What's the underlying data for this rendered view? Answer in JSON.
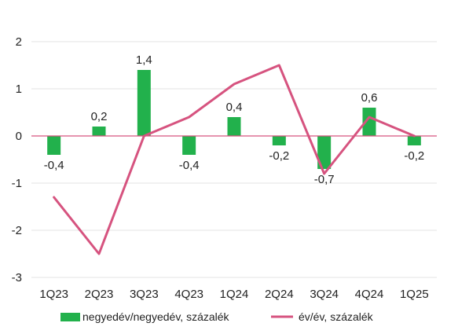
{
  "chart_data": {
    "type": "bar",
    "categories": [
      "1Q23",
      "2Q23",
      "3Q23",
      "4Q23",
      "1Q24",
      "2Q24",
      "3Q24",
      "4Q24",
      "1Q25"
    ],
    "series": [
      {
        "name": "negyedév/negyedév, százalék",
        "type": "bar",
        "values": [
          -0.4,
          0.2,
          1.4,
          -0.4,
          0.4,
          -0.2,
          -0.7,
          0.6,
          -0.2
        ],
        "labels": [
          "-0,4",
          "0,2",
          "1,4",
          "-0,4",
          "0,4",
          "-0,2",
          "-0,7",
          "0,6",
          "-0,2"
        ],
        "color": "#22b14c"
      },
      {
        "name": "év/év, százalék",
        "type": "line",
        "values": [
          -1.3,
          -2.5,
          0.0,
          0.4,
          1.1,
          1.5,
          -0.8,
          0.4,
          0.0
        ],
        "color": "#d6537f"
      }
    ],
    "ylim": [
      -3,
      2
    ],
    "yticks": [
      2,
      1,
      0,
      -1,
      -2,
      -3
    ],
    "ytick_labels": [
      "2",
      "1",
      "0",
      "-1",
      "-2",
      "-3"
    ],
    "grid": true,
    "legend": "bottom",
    "zero_line_color": "#d6537f",
    "grid_color": "#e3e3e3"
  }
}
